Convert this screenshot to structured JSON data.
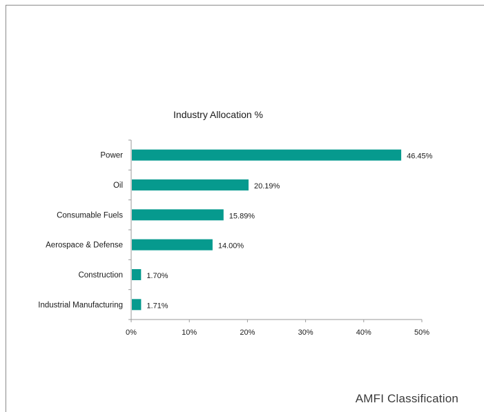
{
  "footer": {
    "label": "AMFI Classification"
  },
  "colors": {
    "bar": "#069A8E",
    "axis": "#9a9a9a",
    "text": "#1a1a1a"
  },
  "chart_data": {
    "type": "bar",
    "orientation": "horizontal",
    "title": "Industry Allocation %",
    "xlabel": "",
    "ylabel": "",
    "categories": [
      "Power",
      "Oil",
      "Consumable Fuels",
      "Aerospace & Defense",
      "Construction",
      "Industrial Manufacturing"
    ],
    "values": [
      46.45,
      20.19,
      15.89,
      14.0,
      1.7,
      1.71
    ],
    "data_labels": [
      "46.45%",
      "20.19%",
      "15.89%",
      "14.00%",
      "1.70%",
      "1.71%"
    ],
    "xlim": [
      0,
      50
    ],
    "xticks": [
      0,
      10,
      20,
      30,
      40,
      50
    ],
    "xtick_labels": [
      "0%",
      "10%",
      "20%",
      "30%",
      "40%",
      "50%"
    ],
    "grid": false,
    "legend": "none"
  }
}
